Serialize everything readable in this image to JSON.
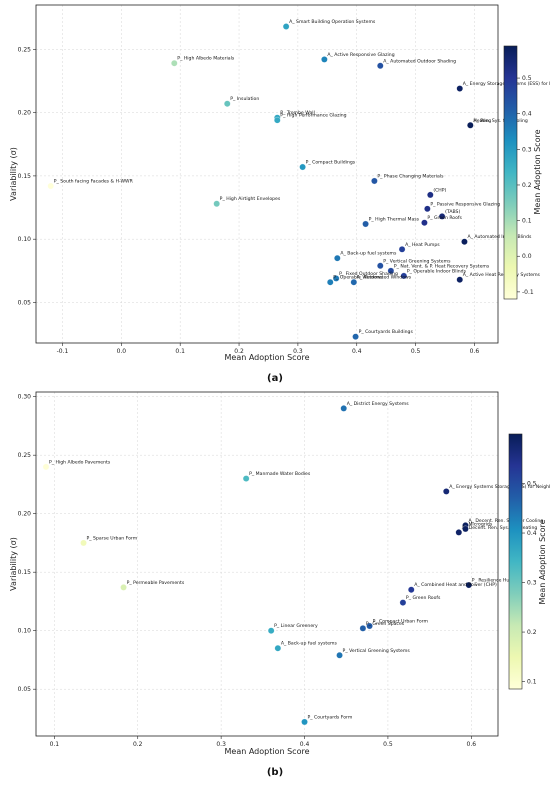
{
  "captions": {
    "a": "(a)",
    "b": "(b)"
  },
  "charts": [
    {
      "xlabel": "Mean Adoption Score",
      "ylabel": "Variability (σ)",
      "colorbar_label": "Mean Adoption Score"
    },
    {
      "xlabel": "Mean Adoption Score",
      "ylabel": "Variability (σ)",
      "colorbar_label": "Mean Adoption Score"
    }
  ],
  "chart_data": [
    {
      "type": "scatter",
      "panel": "(a)",
      "xlabel": "Mean Adoption Score",
      "ylabel": "Variability (σ)",
      "xlim": [
        -0.145,
        0.64
      ],
      "ylim": [
        0.018,
        0.285
      ],
      "xticks": [
        -0.1,
        0.0,
        0.1,
        0.2,
        0.3,
        0.4,
        0.5,
        0.6
      ],
      "yticks": [
        0.05,
        0.1,
        0.15,
        0.2,
        0.25
      ],
      "grid": true,
      "colormap": "YlGnBu",
      "colorbar_label": "Mean Adoption Score",
      "colorbar_range": [
        -0.12,
        0.59
      ],
      "colorbar_ticks": [
        -0.1,
        0.0,
        0.1,
        0.2,
        0.3,
        0.4,
        0.5
      ],
      "points": [
        {
          "label": "A_ Smart Building Operation Systems",
          "x": 0.28,
          "y": 0.268
        },
        {
          "label": "A_ Active Responsive Glazing",
          "x": 0.345,
          "y": 0.242
        },
        {
          "label": "A_ Automated Outdoor Shading",
          "x": 0.44,
          "y": 0.237
        },
        {
          "label": "A_ Energy Storage Systems (ESS) for Buildings",
          "x": 0.575,
          "y": 0.219
        },
        {
          "label": "A_ Ren. Sys. for Cooling",
          "x": 0.593,
          "y": 0.19
        },
        {
          "label": "Heating",
          "x": 0.593,
          "y": 0.19
        },
        {
          "label": "P_ High Albedo Materials",
          "x": 0.09,
          "y": 0.239
        },
        {
          "label": "P_ Insulation",
          "x": 0.18,
          "y": 0.207
        },
        {
          "label": "P_ Trombe Wall",
          "x": 0.265,
          "y": 0.196
        },
        {
          "label": "P_ High Performance Glazing",
          "x": 0.265,
          "y": 0.194
        },
        {
          "label": "P_ Compact Buildings",
          "x": 0.308,
          "y": 0.157
        },
        {
          "label": "P_ Phase Changing Materials",
          "x": 0.43,
          "y": 0.146
        },
        {
          "label": "(CHP)",
          "x": 0.525,
          "y": 0.135
        },
        {
          "label": "P_ Passive Responsive Glazing",
          "x": 0.52,
          "y": 0.124
        },
        {
          "label": "(TABS)",
          "x": 0.545,
          "y": 0.118
        },
        {
          "label": "P_ Green Roofs",
          "x": 0.515,
          "y": 0.113
        },
        {
          "label": "P_ South facing Facades & H-WWR",
          "x": -0.12,
          "y": 0.142
        },
        {
          "label": "P_ High Airtight Envelopes",
          "x": 0.162,
          "y": 0.128
        },
        {
          "label": "P_ High Thermal Mass",
          "x": 0.415,
          "y": 0.112
        },
        {
          "label": "A_ Automated Indoor Blinds",
          "x": 0.583,
          "y": 0.098
        },
        {
          "label": "A_ Heat Pumps",
          "x": 0.477,
          "y": 0.092
        },
        {
          "label": "A_ Back-up fuel systems",
          "x": 0.367,
          "y": 0.085
        },
        {
          "label": "P_ Vertical Greening Systems",
          "x": 0.44,
          "y": 0.079
        },
        {
          "label": "P_ Nat. Vent. & P. Heat Recovery Systems",
          "x": 0.458,
          "y": 0.075
        },
        {
          "label": "P_ Operable Indoor Blinds",
          "x": 0.48,
          "y": 0.071
        },
        {
          "label": "P_ Fixed Outdoor Shading",
          "x": 0.365,
          "y": 0.069
        },
        {
          "label": "A_ Active Heat Recovery Systems",
          "x": 0.575,
          "y": 0.068
        },
        {
          "label": "P_ Operable Windows",
          "x": 0.355,
          "y": 0.066
        },
        {
          "label": "A_ Automated Windows",
          "x": 0.395,
          "y": 0.066
        },
        {
          "label": "P_ Courtyards Buildings",
          "x": 0.398,
          "y": 0.023
        }
      ]
    },
    {
      "type": "scatter",
      "panel": "(b)",
      "xlabel": "Mean Adoption Score",
      "ylabel": "Variability (σ)",
      "xlim": [
        0.078,
        0.632
      ],
      "ylim": [
        0.01,
        0.304
      ],
      "xticks": [
        0.1,
        0.2,
        0.3,
        0.4,
        0.5,
        0.6
      ],
      "yticks": [
        0.05,
        0.1,
        0.15,
        0.2,
        0.25,
        0.3
      ],
      "grid": true,
      "colormap": "YlGnBu",
      "colorbar_label": "Mean Adoption Score",
      "colorbar_range": [
        0.085,
        0.6
      ],
      "colorbar_ticks": [
        0.1,
        0.2,
        0.3,
        0.4,
        0.5
      ],
      "points": [
        {
          "label": "A_ District Energy Systems",
          "x": 0.447,
          "y": 0.29
        },
        {
          "label": "P_ High Albedo Pavements",
          "x": 0.09,
          "y": 0.24
        },
        {
          "label": "P_ Manmade Water Bodies",
          "x": 0.33,
          "y": 0.23
        },
        {
          "label": "A_ Energy Systems Storage (ESS) for Neighborhood",
          "x": 0.57,
          "y": 0.219
        },
        {
          "label": "A_ Decent. Ren. Sys. For Cooling",
          "x": 0.593,
          "y": 0.19
        },
        {
          "label": "A_ Decent. Ren. Sys. For Heating",
          "x": 0.585,
          "y": 0.184
        },
        {
          "label": "Microgrids",
          "x": 0.593,
          "y": 0.187
        },
        {
          "label": "P_ Sparse Urban Form",
          "x": 0.135,
          "y": 0.175
        },
        {
          "label": "P_ Permeable Pavements",
          "x": 0.183,
          "y": 0.137
        },
        {
          "label": "P_ Resilience Hubs",
          "x": 0.597,
          "y": 0.139
        },
        {
          "label": "A_ Combined Heat and Power (CHP)",
          "x": 0.528,
          "y": 0.135
        },
        {
          "label": "P_ Green Roofs",
          "x": 0.518,
          "y": 0.124
        },
        {
          "label": "P_ Linear Greenery",
          "x": 0.36,
          "y": 0.1
        },
        {
          "label": "P_ Compact Urban Form",
          "x": 0.478,
          "y": 0.104
        },
        {
          "label": "P_ Green Spaces",
          "x": 0.47,
          "y": 0.102
        },
        {
          "label": "A_ Back-up fuel systems",
          "x": 0.368,
          "y": 0.085
        },
        {
          "label": "P_ Vertical Greening Systems",
          "x": 0.442,
          "y": 0.079
        },
        {
          "label": "P_ Courtyards Form",
          "x": 0.4,
          "y": 0.022
        }
      ]
    }
  ]
}
